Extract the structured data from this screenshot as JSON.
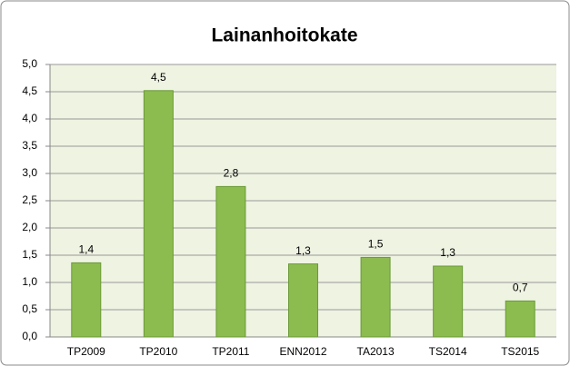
{
  "chart_data": {
    "type": "bar",
    "title": "Lainanhoitokate",
    "categories": [
      "TP2009",
      "TP2010",
      "TP2011",
      "ENN2012",
      "TA2013",
      "TS2014",
      "TS2015"
    ],
    "values": [
      1.36,
      4.52,
      2.76,
      1.34,
      1.46,
      1.3,
      0.66
    ],
    "value_labels": [
      "1,4",
      "4,5",
      "2,8",
      "1,3",
      "1,5",
      "1,3",
      "0,7"
    ],
    "color": "#8cbb4f",
    "ylim": [
      0,
      5
    ],
    "yticks": [
      {
        "value": 0,
        "label": "0,0"
      },
      {
        "value": 0.5,
        "label": "0,5"
      },
      {
        "value": 1,
        "label": "1,0"
      },
      {
        "value": 1.5,
        "label": "1,5"
      },
      {
        "value": 2,
        "label": "2,0"
      },
      {
        "value": 2.5,
        "label": "2,5"
      },
      {
        "value": 3,
        "label": "3,0"
      },
      {
        "value": 3.5,
        "label": "3,5"
      },
      {
        "value": 4,
        "label": "4,0"
      },
      {
        "value": 4.5,
        "label": "4,5"
      },
      {
        "value": 5,
        "label": "5,0"
      }
    ],
    "grid": true
  }
}
